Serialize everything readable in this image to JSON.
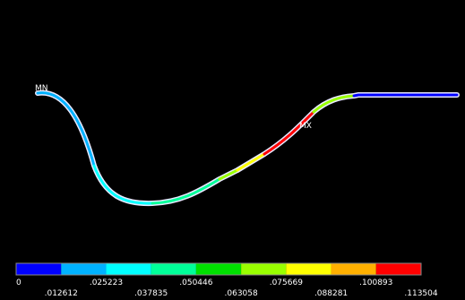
{
  "markers": {
    "min": "MN",
    "max": "MX"
  },
  "legend": {
    "colors": [
      "#0000ff",
      "#00b2ff",
      "#00ffff",
      "#00ff99",
      "#00e000",
      "#99ff00",
      "#ffff00",
      "#ffb000",
      "#ff0000"
    ],
    "labels": [
      "0",
      ".012612",
      ".025223",
      ".037835",
      ".050446",
      ".063058",
      ".075669",
      ".088281",
      ".100893",
      ".113504"
    ]
  }
}
